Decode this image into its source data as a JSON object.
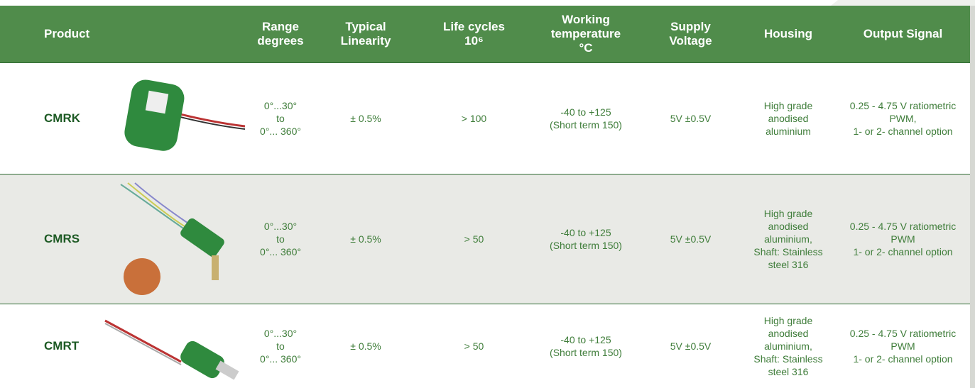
{
  "table": {
    "header": [
      [
        "Product"
      ],
      [
        "Range",
        "degrees"
      ],
      [
        "Typical",
        "Linearity"
      ],
      [
        "Life cycles",
        "10⁶"
      ],
      [
        "Working",
        "temperature",
        "°C"
      ],
      [
        "Supply",
        "Voltage"
      ],
      [
        "Housing"
      ],
      [
        "Output Signal"
      ]
    ],
    "rows": [
      [
        [
          "CMRK"
        ],
        [
          "0°...30°",
          "to",
          "0°... 360°"
        ],
        [
          "± 0.5%"
        ],
        [
          "> 100"
        ],
        [
          "-40 to +125",
          "(Short term 150)"
        ],
        [
          "5V ±0.5V"
        ],
        [
          "High grade",
          "anodised",
          "aluminium"
        ],
        [
          "0.25 - 4.75 V ratiometric",
          "PWM,",
          "1- or 2- channel option"
        ]
      ],
      [
        [
          "CMRS"
        ],
        [
          "0°...30°",
          "to",
          "0°... 360°"
        ],
        [
          "± 0.5%"
        ],
        [
          "> 50"
        ],
        [
          "-40 to +125",
          "(Short term 150)"
        ],
        [
          "5V ±0.5V"
        ],
        [
          "High grade",
          "anodised",
          "aluminium,",
          "Shaft: Stainless",
          "steel 316"
        ],
        [
          "0.25 - 4.75 V ratiometric",
          "PWM",
          "1- or 2- channel option"
        ]
      ],
      [
        [
          "CMRT"
        ],
        [
          "0°...30°",
          "to",
          "0°... 360°"
        ],
        [
          "± 0.5%"
        ],
        [
          "> 50"
        ],
        [
          "-40 to +125",
          "(Short term 150)"
        ],
        [
          "5V ±0.5V"
        ],
        [
          "High grade",
          "anodised",
          "aluminium,",
          "Shaft: Stainless",
          "steel 316"
        ],
        [
          "0.25 - 4.75 V ratiometric",
          "PWM",
          "1- or 2- channel option"
        ]
      ]
    ]
  }
}
